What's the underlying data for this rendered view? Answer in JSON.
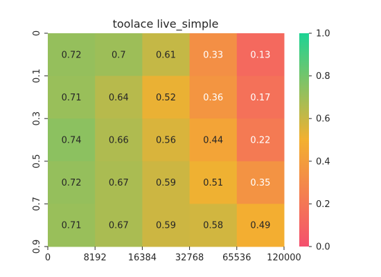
{
  "chart_data": {
    "type": "heatmap",
    "title": "toolace live_simple",
    "xlabel": "",
    "ylabel": "",
    "x_tick_labels": [
      "0",
      "8192",
      "16384",
      "32768",
      "65536",
      "120000"
    ],
    "y_tick_labels": [
      "0",
      "0.1",
      "0.3",
      "0.5",
      "0.7",
      "0.9"
    ],
    "values": [
      [
        0.72,
        0.7,
        0.61,
        0.33,
        0.13
      ],
      [
        0.71,
        0.64,
        0.52,
        0.36,
        0.17
      ],
      [
        0.74,
        0.66,
        0.56,
        0.44,
        0.22
      ],
      [
        0.72,
        0.67,
        0.59,
        0.51,
        0.35
      ],
      [
        0.71,
        0.67,
        0.59,
        0.58,
        0.49
      ]
    ],
    "value_labels": [
      [
        "0.72",
        "0.7",
        "0.61",
        "0.33",
        "0.13"
      ],
      [
        "0.71",
        "0.64",
        "0.52",
        "0.36",
        "0.17"
      ],
      [
        "0.74",
        "0.66",
        "0.56",
        "0.44",
        "0.22"
      ],
      [
        "0.72",
        "0.67",
        "0.59",
        "0.51",
        "0.35"
      ],
      [
        "0.71",
        "0.67",
        "0.59",
        "0.58",
        "0.49"
      ]
    ],
    "colorbar": {
      "range": [
        0.0,
        1.0
      ],
      "tick_labels": [
        "0.0",
        "0.2",
        "0.4",
        "0.6",
        "0.8",
        "1.0"
      ],
      "colormap": [
        "#f4506e",
        "#f3b030",
        "#1dd394"
      ]
    },
    "light_text_below": 0.4,
    "grid": false
  }
}
